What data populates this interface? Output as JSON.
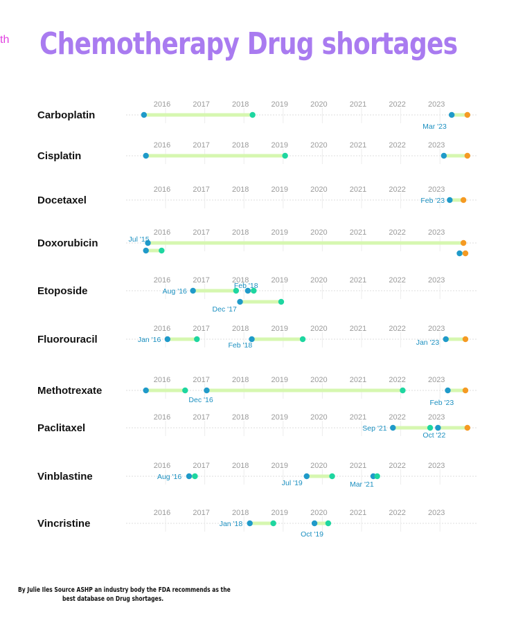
{
  "corner_text": "th",
  "title": "Chemotherapy Drug shortages",
  "credit": {
    "line1": "By Julie Iles  Source ASHP an industry body the FDA recommends as the",
    "line2": "best database on Drug shortages."
  },
  "colors": {
    "title": "#a97bf0",
    "bar": "#d6f7b0",
    "start_dot": "#1f9ac9",
    "end_dot": "#1ed6a0",
    "ongoing_dot": "#f59a23",
    "date_label": "#1a8fc0"
  },
  "chart_data": {
    "type": "timeline",
    "title": "Chemotherapy Drug shortages",
    "x_ticks": [
      "2016",
      "2017",
      "2018",
      "2019",
      "2020",
      "2021",
      "2022",
      "2023"
    ],
    "xlim": [
      2015.0,
      2024.0
    ],
    "grid": true,
    "drugs": [
      {
        "name": "Carboplatin",
        "shortages": [
          {
            "start": 2015.45,
            "end": 2018.22,
            "end_status": "resolved"
          },
          {
            "start": 2023.3,
            "end": 2023.7,
            "end_status": "ongoing",
            "label": "Mar '23"
          }
        ]
      },
      {
        "name": "Cisplatin",
        "shortages": [
          {
            "start": 2015.5,
            "end": 2019.05,
            "end_status": "resolved"
          },
          {
            "start": 2023.1,
            "end": 2023.7,
            "end_status": "ongoing"
          }
        ]
      },
      {
        "name": "Docetaxel",
        "shortages": [
          {
            "start": 2023.25,
            "end": 2023.6,
            "end_status": "ongoing",
            "label": "Feb '23"
          }
        ]
      },
      {
        "name": "Doxorubicin",
        "shortages": [
          {
            "start": 2015.55,
            "end": 2023.6,
            "end_status": "ongoing",
            "label": "Jul '15"
          },
          {
            "start": 2015.5,
            "end": 2015.9,
            "end_status": "resolved"
          },
          {
            "start": 2023.5,
            "end": 2023.65,
            "end_status": "ongoing"
          }
        ]
      },
      {
        "name": "Etoposide",
        "shortages": [
          {
            "start": 2016.7,
            "end": 2017.8,
            "end_status": "resolved",
            "label": "Aug '16"
          },
          {
            "start": 2018.1,
            "end": 2018.25,
            "end_status": "resolved",
            "label": "Feb '18"
          },
          {
            "start": 2017.9,
            "end": 2018.95,
            "end_status": "resolved",
            "label": "Dec '17"
          }
        ]
      },
      {
        "name": "Fluorouracil",
        "shortages": [
          {
            "start": 2016.05,
            "end": 2016.8,
            "end_status": "resolved",
            "label": "Jan '16"
          },
          {
            "start": 2018.2,
            "end": 2019.5,
            "end_status": "resolved",
            "label": "Feb '18"
          },
          {
            "start": 2023.15,
            "end": 2023.65,
            "end_status": "ongoing",
            "label": "Jan '23"
          }
        ]
      },
      {
        "name": "Methotrexate",
        "shortages": [
          {
            "start": 2015.5,
            "end": 2016.5,
            "end_status": "resolved"
          },
          {
            "start": 2017.05,
            "end": 2022.05,
            "end_status": "resolved",
            "label": "Dec '16"
          },
          {
            "start": 2023.2,
            "end": 2023.65,
            "end_status": "ongoing",
            "label": "Feb '23"
          }
        ]
      },
      {
        "name": "Paclitaxel",
        "shortages": [
          {
            "start": 2021.8,
            "end": 2022.75,
            "end_status": "resolved",
            "label": "Sep '21"
          },
          {
            "start": 2022.95,
            "end": 2023.7,
            "end_status": "ongoing",
            "label": "Oct '22"
          }
        ]
      },
      {
        "name": "Vinblastine",
        "shortages": [
          {
            "start": 2016.6,
            "end": 2016.75,
            "end_status": "resolved",
            "label": "Aug '16"
          },
          {
            "start": 2019.6,
            "end": 2020.25,
            "end_status": "resolved",
            "label": "Jul '19"
          },
          {
            "start": 2021.3,
            "end": 2021.4,
            "end_status": "resolved",
            "label": "Mar '21"
          }
        ]
      },
      {
        "name": "Vincristine",
        "shortages": [
          {
            "start": 2018.15,
            "end": 2018.75,
            "end_status": "resolved",
            "label": "Jan '18"
          },
          {
            "start": 2019.8,
            "end": 2020.15,
            "end_status": "resolved",
            "label": "Oct '19"
          }
        ]
      }
    ]
  }
}
